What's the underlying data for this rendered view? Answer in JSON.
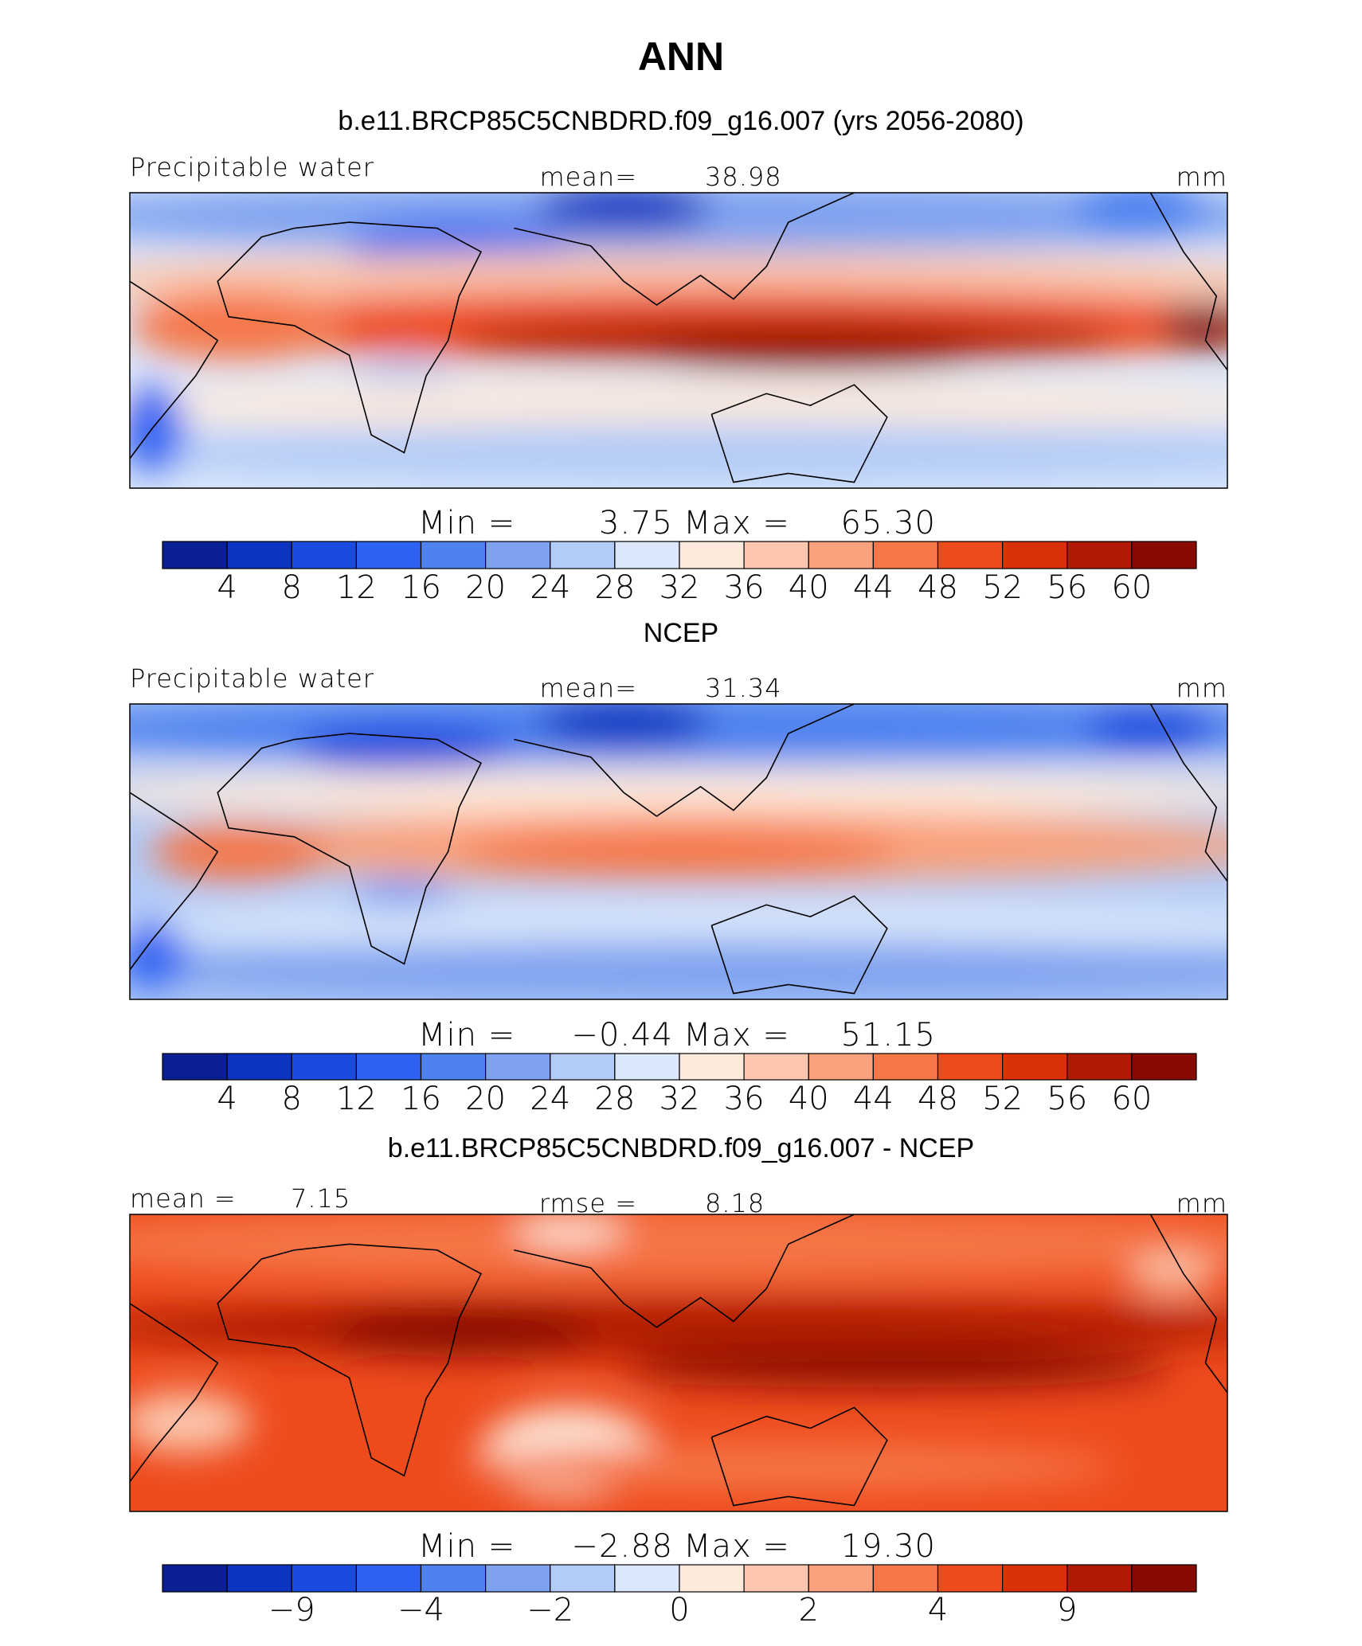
{
  "title": "ANN",
  "panels": [
    {
      "title": "b.e11.BRCP85C5CNBDRD.f09_g16.007 (yrs 2056-2080)",
      "left_text": "Precipitable water",
      "center_text": "mean=",
      "center_value": "38.98",
      "right_text": "mm",
      "min_text": "Min =",
      "min": "3.75",
      "max_text": "Max =",
      "max": "65.30",
      "colorbar": {
        "colors": [
          "#0a1f94",
          "#0c34c0",
          "#1b4ade",
          "#2e63f2",
          "#4f82ef",
          "#7ea2f0",
          "#b2cbf7",
          "#dbe8fb",
          "#feeadc",
          "#fcc7ae",
          "#f9a17c",
          "#f57647",
          "#ee4b1d",
          "#d93008",
          "#b01a02",
          "#880a00"
        ],
        "labels": [
          4,
          8,
          12,
          16,
          20,
          24,
          28,
          32,
          36,
          40,
          44,
          48,
          52,
          56,
          60
        ]
      }
    },
    {
      "title": "NCEP",
      "left_text": "Precipitable water",
      "center_text": "mean=",
      "center_value": "31.34",
      "right_text": "mm",
      "min_text": "Min =",
      "min": "−0.44",
      "max_text": "Max =",
      "max": "51.15",
      "colorbar": {
        "colors": [
          "#0a1f94",
          "#0c34c0",
          "#1b4ade",
          "#2e63f2",
          "#4f82ef",
          "#7ea2f0",
          "#b2cbf7",
          "#dbe8fb",
          "#feeadc",
          "#fcc7ae",
          "#f9a17c",
          "#f57647",
          "#ee4b1d",
          "#d93008",
          "#b01a02",
          "#880a00"
        ],
        "labels": [
          4,
          8,
          12,
          16,
          20,
          24,
          28,
          32,
          36,
          40,
          44,
          48,
          52,
          56,
          60
        ]
      }
    },
    {
      "title": "b.e11.BRCP85C5CNBDRD.f09_g16.007 - NCEP",
      "left_text": "mean =",
      "left_value": "7.15",
      "center_text": "rmse =",
      "center_value": "8.18",
      "right_text": "mm",
      "min_text": "Min =",
      "min": "−2.88",
      "max_text": "Max =",
      "max": "19.30",
      "colorbar": {
        "colors": [
          "#0a1f94",
          "#0c34c0",
          "#1b4ade",
          "#2e63f2",
          "#4f82ef",
          "#7ea2f0",
          "#b2cbf7",
          "#dbe8fb",
          "#feeadc",
          "#fcc7ae",
          "#f9a17c",
          "#f57647",
          "#ee4b1d",
          "#d93008",
          "#b01a02",
          "#880a00"
        ],
        "labels": [
          null,
          {
            "value": -9,
            "label": "−9"
          },
          null,
          {
            "value": -4,
            "label": "−4"
          },
          null,
          {
            "value": -2,
            "label": "−2"
          },
          null,
          0,
          null,
          2,
          null,
          4,
          null,
          9,
          null
        ]
      }
    }
  ]
}
